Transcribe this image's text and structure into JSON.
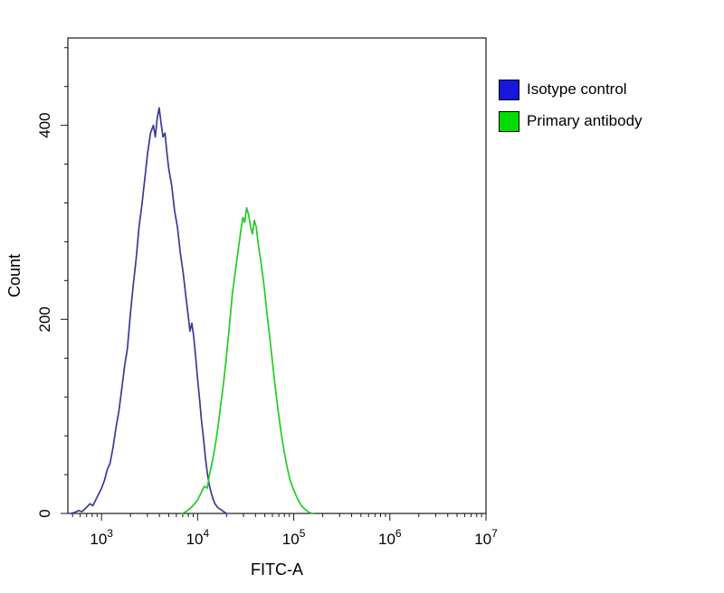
{
  "chart_data": {
    "type": "line",
    "title": "",
    "xlabel": "FITC-A",
    "ylabel": "Count",
    "x_scale": "log",
    "x_log_range": [
      2.65,
      7
    ],
    "ylim": [
      0,
      490
    ],
    "x_major_tick_exponents": [
      3,
      4,
      5,
      6,
      7
    ],
    "y_major_ticks": [
      0,
      200,
      400
    ],
    "y_minor_step": 40,
    "grid": false,
    "legend_position": "top-right-outside",
    "axis_color": "#1a1a1a",
    "series": [
      {
        "name": "Isotype control",
        "color": "#3a3a99",
        "legend_color": "#1717dd",
        "peak": {
          "x_log": 3.6,
          "count": 418
        },
        "points": [
          [
            2.68,
            0
          ],
          [
            2.72,
            1
          ],
          [
            2.76,
            3
          ],
          [
            2.8,
            2
          ],
          [
            2.84,
            6
          ],
          [
            2.88,
            10
          ],
          [
            2.91,
            8
          ],
          [
            2.94,
            14
          ],
          [
            2.97,
            20
          ],
          [
            3.0,
            26
          ],
          [
            3.03,
            34
          ],
          [
            3.06,
            45
          ],
          [
            3.09,
            52
          ],
          [
            3.12,
            68
          ],
          [
            3.15,
            88
          ],
          [
            3.18,
            105
          ],
          [
            3.21,
            128
          ],
          [
            3.24,
            152
          ],
          [
            3.27,
            170
          ],
          [
            3.3,
            205
          ],
          [
            3.33,
            235
          ],
          [
            3.36,
            262
          ],
          [
            3.39,
            295
          ],
          [
            3.42,
            318
          ],
          [
            3.45,
            345
          ],
          [
            3.48,
            372
          ],
          [
            3.51,
            392
          ],
          [
            3.54,
            400
          ],
          [
            3.56,
            388
          ],
          [
            3.58,
            408
          ],
          [
            3.6,
            418
          ],
          [
            3.62,
            402
          ],
          [
            3.64,
            388
          ],
          [
            3.66,
            392
          ],
          [
            3.68,
            372
          ],
          [
            3.7,
            355
          ],
          [
            3.73,
            338
          ],
          [
            3.76,
            312
          ],
          [
            3.79,
            295
          ],
          [
            3.82,
            268
          ],
          [
            3.85,
            248
          ],
          [
            3.88,
            222
          ],
          [
            3.9,
            205
          ],
          [
            3.92,
            188
          ],
          [
            3.94,
            196
          ],
          [
            3.96,
            182
          ],
          [
            3.98,
            160
          ],
          [
            4.0,
            138
          ],
          [
            4.02,
            118
          ],
          [
            4.04,
            96
          ],
          [
            4.06,
            78
          ],
          [
            4.08,
            58
          ],
          [
            4.1,
            42
          ],
          [
            4.12,
            30
          ],
          [
            4.14,
            22
          ],
          [
            4.16,
            15
          ],
          [
            4.18,
            10
          ],
          [
            4.21,
            6
          ],
          [
            4.24,
            4
          ],
          [
            4.27,
            2
          ],
          [
            4.3,
            0
          ]
        ]
      },
      {
        "name": "Primary antibody",
        "color": "#22cc22",
        "legend_color": "#00dd00",
        "peak": {
          "x_log": 4.51,
          "count": 315
        },
        "points": [
          [
            3.84,
            0
          ],
          [
            3.88,
            2
          ],
          [
            3.92,
            5
          ],
          [
            3.96,
            9
          ],
          [
            4.0,
            14
          ],
          [
            4.04,
            22
          ],
          [
            4.07,
            28
          ],
          [
            4.1,
            26
          ],
          [
            4.12,
            38
          ],
          [
            4.15,
            52
          ],
          [
            4.18,
            68
          ],
          [
            4.21,
            88
          ],
          [
            4.24,
            112
          ],
          [
            4.27,
            135
          ],
          [
            4.3,
            162
          ],
          [
            4.33,
            192
          ],
          [
            4.36,
            225
          ],
          [
            4.39,
            248
          ],
          [
            4.42,
            270
          ],
          [
            4.45,
            292
          ],
          [
            4.47,
            305
          ],
          [
            4.49,
            300
          ],
          [
            4.51,
            315
          ],
          [
            4.53,
            308
          ],
          [
            4.55,
            296
          ],
          [
            4.57,
            288
          ],
          [
            4.59,
            302
          ],
          [
            4.61,
            295
          ],
          [
            4.63,
            278
          ],
          [
            4.66,
            258
          ],
          [
            4.69,
            235
          ],
          [
            4.72,
            208
          ],
          [
            4.75,
            182
          ],
          [
            4.78,
            155
          ],
          [
            4.81,
            128
          ],
          [
            4.84,
            104
          ],
          [
            4.87,
            82
          ],
          [
            4.9,
            64
          ],
          [
            4.93,
            48
          ],
          [
            4.96,
            35
          ],
          [
            5.0,
            24
          ],
          [
            5.04,
            15
          ],
          [
            5.08,
            8
          ],
          [
            5.12,
            4
          ],
          [
            5.16,
            1
          ],
          [
            5.2,
            0
          ]
        ]
      }
    ]
  },
  "legend": {
    "items": [
      {
        "label": "Isotype control"
      },
      {
        "label": "Primary antibody"
      }
    ]
  }
}
